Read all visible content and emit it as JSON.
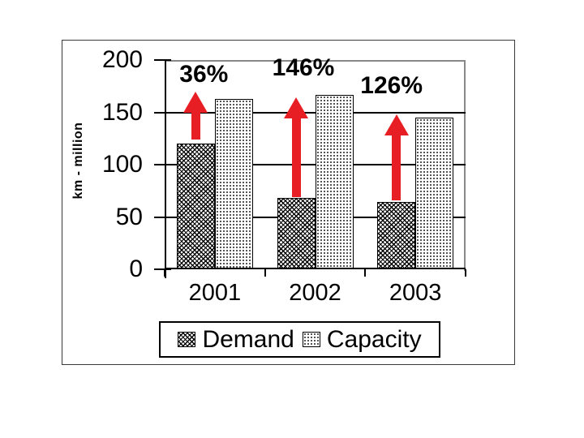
{
  "figure": {
    "background": "#ffffff",
    "border_color": "#3a3a3a"
  },
  "chart_data": {
    "type": "bar",
    "title": "",
    "xlabel": "",
    "ylabel": "km - million",
    "categories": [
      "2001",
      "2002",
      "2003"
    ],
    "series": [
      {
        "name": "Demand",
        "values": [
          120,
          68,
          64
        ],
        "pattern": "dark-crosshatch"
      },
      {
        "name": "Capacity",
        "values": [
          163,
          167,
          145
        ],
        "pattern": "light-dots"
      }
    ],
    "ylim": [
      0,
      200
    ],
    "yticks": [
      0,
      50,
      100,
      150,
      200
    ],
    "grid": true,
    "legend_position": "bottom-center",
    "annotations": [
      {
        "text": "36%",
        "category": "2001",
        "arrow_from": 124,
        "arrow_to": 170,
        "label_dx": 10,
        "label_gap": 4
      },
      {
        "text": "146%",
        "category": "2002",
        "arrow_from": 69,
        "arrow_to": 164,
        "label_dx": 9,
        "label_gap": 19
      },
      {
        "text": "126%",
        "category": "2003",
        "arrow_from": 66,
        "arrow_to": 148,
        "label_dx": -6,
        "label_gap": 18
      }
    ],
    "colors": {
      "arrow": "#e81e25",
      "axis": "#000000",
      "gridline": "#000000",
      "plot_border": "#888888",
      "pattern_fg": "#000000",
      "pattern_bg": "#ffffff"
    }
  }
}
